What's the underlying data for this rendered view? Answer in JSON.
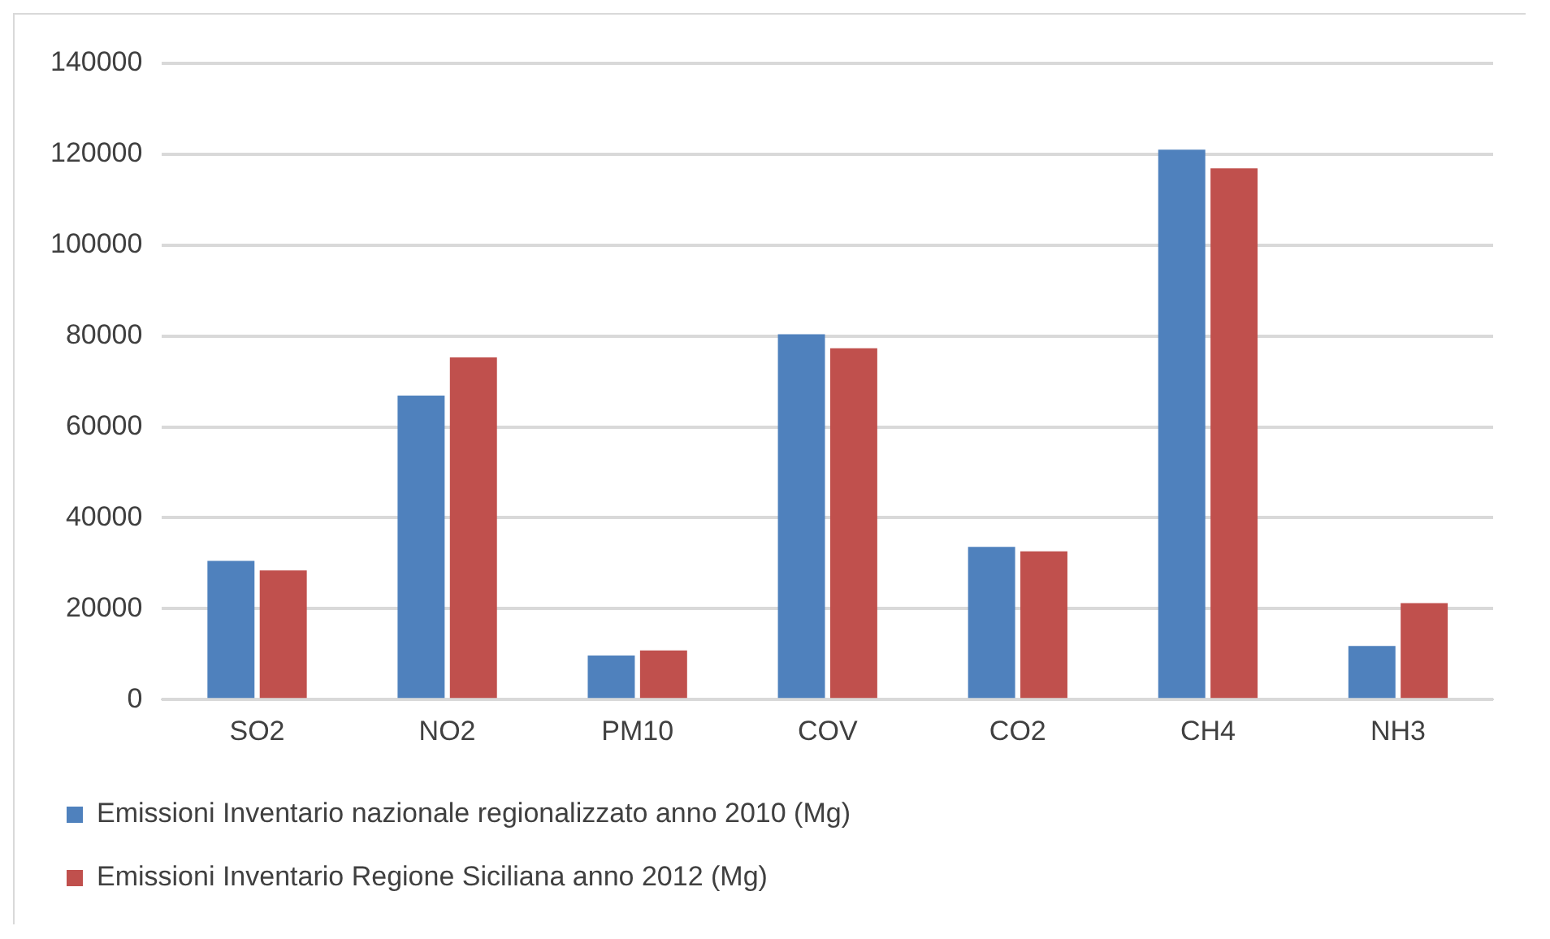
{
  "chart_data": {
    "type": "bar",
    "categories": [
      "SO2",
      "NO2",
      "PM10",
      "COV",
      "CO2",
      "CH4",
      "NH3"
    ],
    "series": [
      {
        "name": "Emissioni Inventario nazionale regionalizzato anno 2010 (Mg)",
        "color": "#4f81bd",
        "values": [
          30500,
          66900,
          9700,
          80400,
          33600,
          121000,
          11800
        ]
      },
      {
        "name": "Emissioni Inventario Regione Siciliana anno 2012 (Mg)",
        "color": "#c0504d",
        "values": [
          28400,
          75300,
          10800,
          77300,
          32600,
          116900,
          21200
        ]
      }
    ],
    "ylim": [
      0,
      140000
    ],
    "yticks": [
      0,
      20000,
      40000,
      60000,
      80000,
      100000,
      120000,
      140000
    ],
    "grid": "y",
    "legend": "bottom"
  }
}
